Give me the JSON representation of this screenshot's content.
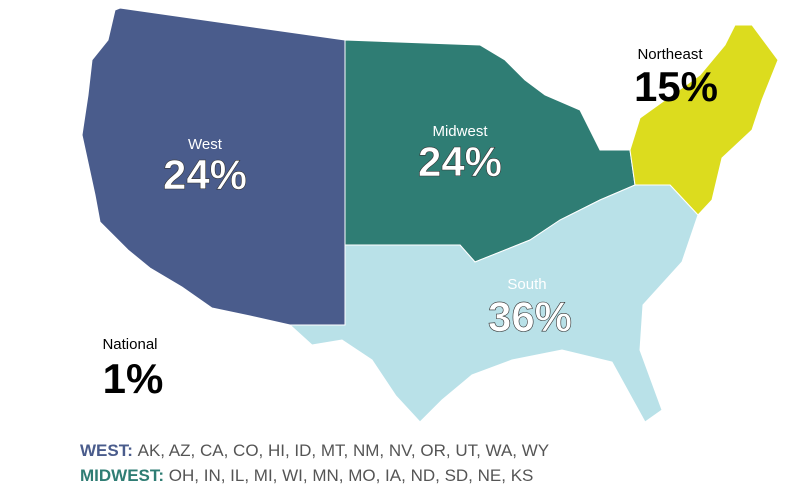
{
  "regions": [
    {
      "name": "West",
      "value": 24,
      "value_label": "24%",
      "color": "#4a5c8c"
    },
    {
      "name": "Midwest",
      "value": 24,
      "value_label": "24%",
      "color": "#2f7d74"
    },
    {
      "name": "Northeast",
      "value": 15,
      "value_label": "15%",
      "color": "#dcdc1e"
    },
    {
      "name": "South",
      "value": 36,
      "value_label": "36%",
      "color": "#b9e1e8"
    },
    {
      "name": "National",
      "value": 1,
      "value_label": "1%"
    }
  ],
  "legend": [
    {
      "key": "WEST:",
      "states": "AK, AZ, CA, CO, HI, ID, MT, NM, NV, OR, UT, WA, WY",
      "color": "#4a5c8c"
    },
    {
      "key": "MIDWEST:",
      "states": "OH, IN, IL, MI, WI, MN, MO, IA, ND, SD, NE, KS",
      "color": "#2f7d74"
    }
  ]
}
